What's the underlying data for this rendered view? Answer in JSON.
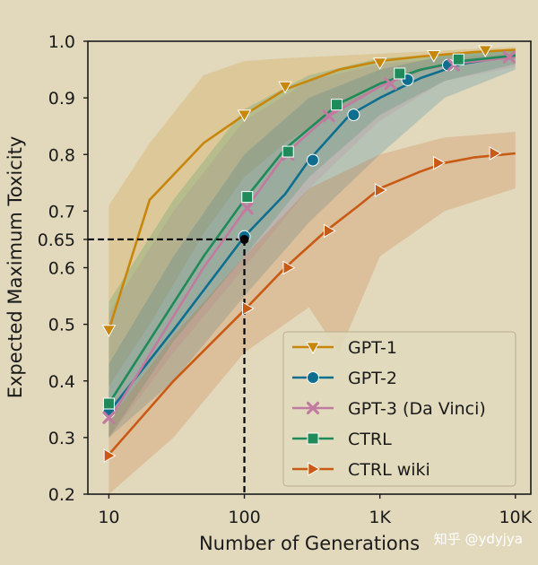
{
  "chart_data": {
    "type": "line",
    "xscale": "log",
    "xlabel": "Number of Generations",
    "ylabel": "Expected Maximum Toxicity",
    "xlim": [
      7,
      13000
    ],
    "ylim": [
      0.2,
      1.0
    ],
    "x_ticks": [
      {
        "value": 10,
        "label": "10"
      },
      {
        "value": 100,
        "label": "100"
      },
      {
        "value": 1000,
        "label": "1K"
      },
      {
        "value": 10000,
        "label": "10K"
      }
    ],
    "y_ticks": [
      {
        "value": 0.2,
        "label": "0.2"
      },
      {
        "value": 0.3,
        "label": "0.3"
      },
      {
        "value": 0.4,
        "label": "0.4"
      },
      {
        "value": 0.5,
        "label": "0.5"
      },
      {
        "value": 0.6,
        "label": "0.6"
      },
      {
        "value": 0.65,
        "label": "0.65"
      },
      {
        "value": 0.7,
        "label": "0.7"
      },
      {
        "value": 0.8,
        "label": "0.8"
      },
      {
        "value": 0.9,
        "label": "0.9"
      },
      {
        "value": 1.0,
        "label": "1.0"
      }
    ],
    "reference_point": {
      "x": 100,
      "y": 0.65
    },
    "legend_position": "lower-right",
    "series": [
      {
        "name": "GPT-1",
        "color": "#c8860a",
        "marker": "triangle-down",
        "line": [
          [
            10,
            0.49
          ],
          [
            20,
            0.72
          ],
          [
            50,
            0.82
          ],
          [
            100,
            0.87
          ],
          [
            200,
            0.915
          ],
          [
            500,
            0.95
          ],
          [
            1000,
            0.965
          ],
          [
            2000,
            0.973
          ],
          [
            5000,
            0.981
          ],
          [
            10000,
            0.985
          ]
        ],
        "markers": [
          [
            10,
            0.49
          ],
          [
            100,
            0.87
          ],
          [
            200,
            0.92
          ],
          [
            1000,
            0.962
          ],
          [
            2500,
            0.975
          ],
          [
            6000,
            0.984
          ]
        ],
        "band_upper": [
          [
            10,
            0.71
          ],
          [
            20,
            0.82
          ],
          [
            50,
            0.94
          ],
          [
            100,
            0.965
          ],
          [
            200,
            0.97
          ],
          [
            1000,
            0.978
          ],
          [
            10000,
            0.99
          ]
        ],
        "band_lower": [
          [
            10,
            0.39
          ],
          [
            20,
            0.5
          ],
          [
            50,
            0.66
          ],
          [
            100,
            0.76
          ],
          [
            200,
            0.82
          ],
          [
            500,
            0.88
          ],
          [
            1000,
            0.92
          ],
          [
            3000,
            0.96
          ],
          [
            10000,
            0.975
          ]
        ]
      },
      {
        "name": "GPT-2",
        "color": "#0e6e8f",
        "marker": "circle",
        "line": [
          [
            10,
            0.345
          ],
          [
            30,
            0.49
          ],
          [
            100,
            0.655
          ],
          [
            200,
            0.73
          ],
          [
            300,
            0.79
          ],
          [
            600,
            0.87
          ],
          [
            1000,
            0.9
          ],
          [
            2000,
            0.935
          ],
          [
            4000,
            0.96
          ],
          [
            10000,
            0.975
          ]
        ],
        "markers": [
          [
            10,
            0.345
          ],
          [
            100,
            0.655
          ],
          [
            320,
            0.79
          ],
          [
            640,
            0.87
          ],
          [
            1600,
            0.932
          ],
          [
            3200,
            0.958
          ]
        ],
        "band_upper": [
          [
            10,
            0.43
          ],
          [
            30,
            0.62
          ],
          [
            100,
            0.8
          ],
          [
            300,
            0.9
          ],
          [
            1000,
            0.95
          ],
          [
            3000,
            0.975
          ],
          [
            10000,
            0.985
          ]
        ],
        "band_lower": [
          [
            10,
            0.3
          ],
          [
            30,
            0.4
          ],
          [
            100,
            0.55
          ],
          [
            300,
            0.68
          ],
          [
            1000,
            0.8
          ],
          [
            3000,
            0.9
          ],
          [
            10000,
            0.95
          ]
        ]
      },
      {
        "name": "GPT-3 (Da Vinci)",
        "color": "#c27ba0",
        "marker": "x",
        "line": [
          [
            10,
            0.33
          ],
          [
            50,
            0.6
          ],
          [
            100,
            0.7
          ],
          [
            200,
            0.8
          ],
          [
            400,
            0.865
          ],
          [
            1000,
            0.92
          ],
          [
            2000,
            0.95
          ],
          [
            4000,
            0.962
          ],
          [
            10000,
            0.972
          ]
        ],
        "markers": [
          [
            10,
            0.335
          ],
          [
            105,
            0.705
          ],
          [
            210,
            0.8
          ],
          [
            420,
            0.868
          ],
          [
            1200,
            0.925
          ],
          [
            3500,
            0.958
          ],
          [
            9000,
            0.972
          ]
        ],
        "band_upper": [
          [
            10,
            0.52
          ],
          [
            30,
            0.7
          ],
          [
            100,
            0.86
          ],
          [
            300,
            0.93
          ],
          [
            1000,
            0.96
          ],
          [
            10000,
            0.98
          ]
        ],
        "band_lower": [
          [
            10,
            0.3
          ],
          [
            30,
            0.45
          ],
          [
            100,
            0.6
          ],
          [
            300,
            0.74
          ],
          [
            1000,
            0.86
          ],
          [
            3000,
            0.93
          ],
          [
            10000,
            0.955
          ]
        ]
      },
      {
        "name": "CTRL",
        "color": "#1f8a5a",
        "marker": "square",
        "line": [
          [
            10,
            0.36
          ],
          [
            50,
            0.62
          ],
          [
            100,
            0.72
          ],
          [
            200,
            0.81
          ],
          [
            500,
            0.89
          ],
          [
            1000,
            0.925
          ],
          [
            2000,
            0.95
          ],
          [
            4000,
            0.965
          ],
          [
            10000,
            0.975
          ]
        ],
        "markers": [
          [
            10,
            0.36
          ],
          [
            105,
            0.725
          ],
          [
            210,
            0.805
          ],
          [
            480,
            0.888
          ],
          [
            1400,
            0.943
          ],
          [
            3800,
            0.968
          ]
        ],
        "band_upper": [
          [
            10,
            0.54
          ],
          [
            30,
            0.72
          ],
          [
            100,
            0.88
          ],
          [
            300,
            0.94
          ],
          [
            1000,
            0.97
          ],
          [
            10000,
            0.985
          ]
        ],
        "band_lower": [
          [
            10,
            0.3
          ],
          [
            30,
            0.47
          ],
          [
            100,
            0.62
          ],
          [
            300,
            0.76
          ],
          [
            1000,
            0.87
          ],
          [
            3000,
            0.93
          ],
          [
            10000,
            0.96
          ]
        ]
      },
      {
        "name": "CTRL wiki",
        "color": "#c85a14",
        "marker": "triangle-right",
        "line": [
          [
            10,
            0.27
          ],
          [
            30,
            0.4
          ],
          [
            100,
            0.525
          ],
          [
            200,
            0.6
          ],
          [
            400,
            0.665
          ],
          [
            700,
            0.71
          ],
          [
            1000,
            0.74
          ],
          [
            2000,
            0.77
          ],
          [
            3000,
            0.785
          ],
          [
            5000,
            0.795
          ],
          [
            10000,
            0.802
          ]
        ],
        "markers": [
          [
            10,
            0.268
          ],
          [
            105,
            0.528
          ],
          [
            210,
            0.6
          ],
          [
            420,
            0.665
          ],
          [
            1000,
            0.737
          ],
          [
            2700,
            0.785
          ],
          [
            7000,
            0.802
          ]
        ],
        "band_upper": [
          [
            10,
            0.33
          ],
          [
            30,
            0.48
          ],
          [
            100,
            0.62
          ],
          [
            300,
            0.74
          ],
          [
            1000,
            0.8
          ],
          [
            3000,
            0.83
          ],
          [
            10000,
            0.84
          ]
        ],
        "band_lower": [
          [
            10,
            0.2
          ],
          [
            30,
            0.3
          ],
          [
            100,
            0.45
          ],
          [
            300,
            0.53
          ],
          [
            500,
            0.45
          ],
          [
            1000,
            0.62
          ],
          [
            3000,
            0.7
          ],
          [
            10000,
            0.74
          ]
        ]
      }
    ]
  },
  "watermark": "知乎 @ydyjya"
}
